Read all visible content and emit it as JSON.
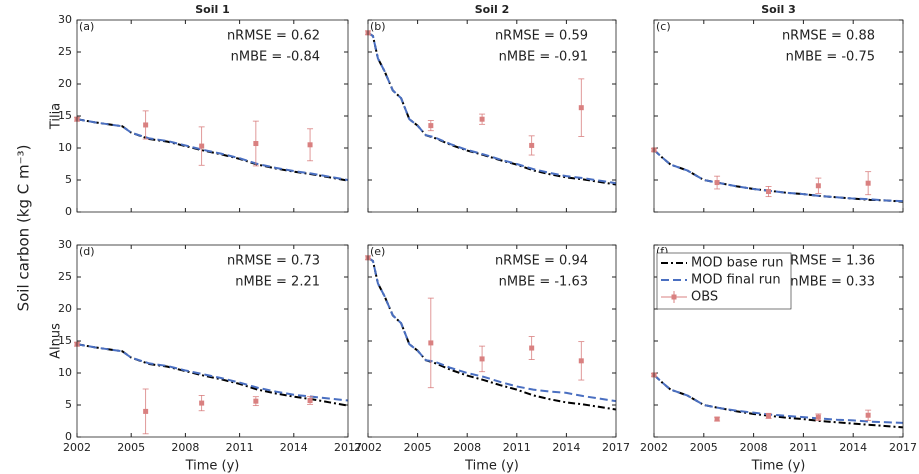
{
  "ylabel": "Soil carbon (kg C m⁻³)",
  "chart_data": [
    {
      "type": "line",
      "panel": "(a)",
      "title": "Soil 1",
      "row_label": "Tilia",
      "annotations": [
        "nRMSE = 0.62",
        "nMBE = -0.84"
      ],
      "xlim": [
        2002,
        2017
      ],
      "ylim": [
        0,
        30
      ],
      "xticks": [
        2002,
        2005,
        2008,
        2011,
        2014,
        2017
      ],
      "yticks": [
        0,
        5,
        10,
        15,
        20,
        25,
        30
      ],
      "show_xtick_labels": false,
      "show_ytick_labels": true,
      "series": [
        {
          "color": "#000000",
          "style": "dashdot",
          "x": [
            2002,
            2003,
            2004,
            2004.5,
            2005,
            2006,
            2007,
            2008,
            2009,
            2010,
            2011,
            2012,
            2013,
            2014,
            2015,
            2016,
            2017
          ],
          "values": [
            14.5,
            14.0,
            13.6,
            13.4,
            12.4,
            11.4,
            11.0,
            10.3,
            9.6,
            9.0,
            8.3,
            7.4,
            6.8,
            6.3,
            5.9,
            5.4,
            4.9
          ]
        },
        {
          "color": "#4a6fc1",
          "style": "dashed",
          "x": [
            2002,
            2003,
            2004,
            2004.5,
            2005,
            2006,
            2007,
            2008,
            2009,
            2010,
            2011,
            2012,
            2013,
            2014,
            2015,
            2016,
            2017
          ],
          "values": [
            14.5,
            14.0,
            13.6,
            13.4,
            12.4,
            11.5,
            11.1,
            10.4,
            9.7,
            9.1,
            8.4,
            7.5,
            6.9,
            6.4,
            6.0,
            5.5,
            5.0
          ]
        },
        {
          "color": "#d98080",
          "style": "markers",
          "x": [
            2002,
            2005.8,
            2008.9,
            2011.9,
            2014.9
          ],
          "values": [
            14.5,
            13.6,
            10.3,
            10.7,
            10.5
          ],
          "errors": [
            0.3,
            2.2,
            3.0,
            3.5,
            2.5
          ]
        }
      ]
    },
    {
      "type": "line",
      "panel": "(b)",
      "title": "Soil 2",
      "annotations": [
        "nRMSE = 0.59",
        "nMBE = -0.91"
      ],
      "xlim": [
        2002,
        2017
      ],
      "ylim": [
        0,
        30
      ],
      "xticks": [
        2002,
        2005,
        2008,
        2011,
        2014,
        2017
      ],
      "yticks": [
        0,
        5,
        10,
        15,
        20,
        25,
        30
      ],
      "show_xtick_labels": false,
      "show_ytick_labels": false,
      "series": [
        {
          "color": "#000000",
          "style": "dashdot",
          "x": [
            2002,
            2002.3,
            2002.6,
            2003,
            2003.5,
            2004,
            2004.5,
            2005,
            2005.5,
            2006,
            2007,
            2008,
            2009,
            2010,
            2011,
            2012,
            2013,
            2014,
            2015,
            2016,
            2017
          ],
          "values": [
            28,
            27.5,
            24,
            22,
            19,
            17.8,
            14.5,
            13.5,
            12,
            11.6,
            10.5,
            9.6,
            8.9,
            8.1,
            7.4,
            6.5,
            5.9,
            5.4,
            5.1,
            4.7,
            4.3
          ]
        },
        {
          "color": "#4a6fc1",
          "style": "dashed",
          "x": [
            2002,
            2002.3,
            2002.6,
            2003,
            2003.5,
            2004,
            2004.5,
            2005,
            2005.5,
            2006,
            2007,
            2008,
            2009,
            2010,
            2011,
            2012,
            2013,
            2014,
            2015,
            2016,
            2017
          ],
          "values": [
            28,
            27.5,
            24,
            22,
            19,
            17.8,
            14.5,
            13.5,
            12,
            11.7,
            10.6,
            9.7,
            9.0,
            8.2,
            7.5,
            6.7,
            6.1,
            5.6,
            5.3,
            4.9,
            4.5
          ]
        },
        {
          "color": "#d98080",
          "style": "markers",
          "x": [
            2002,
            2005.8,
            2008.9,
            2011.9,
            2014.9
          ],
          "values": [
            28,
            13.5,
            14.5,
            10.4,
            16.3
          ],
          "errors": [
            0.3,
            0.8,
            0.8,
            1.5,
            4.5
          ]
        }
      ]
    },
    {
      "type": "line",
      "panel": "(c)",
      "title": "Soil 3",
      "annotations": [
        "nRMSE = 0.88",
        "nMBE = -0.75"
      ],
      "xlim": [
        2002,
        2017
      ],
      "ylim": [
        0,
        30
      ],
      "xticks": [
        2002,
        2005,
        2008,
        2011,
        2014,
        2017
      ],
      "yticks": [
        0,
        5,
        10,
        15,
        20,
        25,
        30
      ],
      "show_xtick_labels": false,
      "show_ytick_labels": false,
      "series": [
        {
          "color": "#000000",
          "style": "dashdot",
          "x": [
            2002,
            2002.5,
            2003,
            2004,
            2005,
            2006,
            2007,
            2008,
            2009,
            2010,
            2011,
            2012,
            2013,
            2014,
            2015,
            2016,
            2017
          ],
          "values": [
            9.7,
            8.5,
            7.4,
            6.5,
            5.0,
            4.5,
            4.0,
            3.6,
            3.3,
            3.0,
            2.8,
            2.5,
            2.3,
            2.1,
            1.9,
            1.8,
            1.6
          ]
        },
        {
          "color": "#4a6fc1",
          "style": "dashed",
          "x": [
            2002,
            2002.5,
            2003,
            2004,
            2005,
            2006,
            2007,
            2008,
            2009,
            2010,
            2011,
            2012,
            2013,
            2014,
            2015,
            2016,
            2017
          ],
          "values": [
            9.7,
            8.5,
            7.4,
            6.5,
            5.0,
            4.5,
            4.0,
            3.6,
            3.3,
            3.0,
            2.8,
            2.5,
            2.3,
            2.1,
            2.0,
            1.8,
            1.7
          ]
        },
        {
          "color": "#d98080",
          "style": "markers",
          "x": [
            2002,
            2005.8,
            2008.9,
            2011.9,
            2014.9
          ],
          "values": [
            9.7,
            4.6,
            3.2,
            4.1,
            4.5
          ],
          "errors": [
            0.2,
            1.0,
            0.8,
            1.2,
            1.8
          ]
        }
      ]
    },
    {
      "type": "line",
      "panel": "(d)",
      "row_label": "Alnus",
      "annotations": [
        "nRMSE = 0.73",
        "nMBE = 2.21"
      ],
      "xlabel": "Time (y)",
      "xlim": [
        2002,
        2017
      ],
      "ylim": [
        0,
        30
      ],
      "xticks": [
        2002,
        2005,
        2008,
        2011,
        2014,
        2017
      ],
      "yticks": [
        0,
        5,
        10,
        15,
        20,
        25,
        30
      ],
      "show_xtick_labels": true,
      "show_ytick_labels": true,
      "series": [
        {
          "color": "#000000",
          "style": "dashdot",
          "x": [
            2002,
            2003,
            2004,
            2004.5,
            2005,
            2006,
            2007,
            2008,
            2009,
            2010,
            2011,
            2012,
            2013,
            2014,
            2015,
            2016,
            2017
          ],
          "values": [
            14.5,
            14.0,
            13.6,
            13.4,
            12.4,
            11.4,
            11.0,
            10.3,
            9.6,
            9.0,
            8.3,
            7.4,
            6.8,
            6.3,
            5.9,
            5.4,
            4.9
          ]
        },
        {
          "color": "#4a6fc1",
          "style": "dashed",
          "x": [
            2002,
            2003,
            2004,
            2004.5,
            2005,
            2006,
            2007,
            2008,
            2009,
            2010,
            2011,
            2012,
            2013,
            2014,
            2015,
            2016,
            2017
          ],
          "values": [
            14.5,
            14.0,
            13.6,
            13.4,
            12.4,
            11.5,
            11.1,
            10.4,
            9.8,
            9.2,
            8.5,
            7.7,
            7.1,
            6.6,
            6.3,
            6.0,
            5.7
          ]
        },
        {
          "color": "#d98080",
          "style": "markers",
          "x": [
            2002,
            2005.8,
            2008.9,
            2011.9,
            2014.9
          ],
          "values": [
            14.5,
            4.0,
            5.3,
            5.6,
            5.7
          ],
          "errors": [
            0.3,
            3.5,
            1.2,
            0.7,
            0.6
          ]
        }
      ]
    },
    {
      "type": "line",
      "panel": "(e)",
      "annotations": [
        "nRMSE = 0.94",
        "nMBE = -1.63"
      ],
      "xlabel": "Time (y)",
      "xlim": [
        2002,
        2017
      ],
      "ylim": [
        0,
        30
      ],
      "xticks": [
        2002,
        2005,
        2008,
        2011,
        2014,
        2017
      ],
      "yticks": [
        0,
        5,
        10,
        15,
        20,
        25,
        30
      ],
      "show_xtick_labels": true,
      "show_ytick_labels": false,
      "series": [
        {
          "color": "#000000",
          "style": "dashdot",
          "x": [
            2002,
            2002.3,
            2002.6,
            2003,
            2003.5,
            2004,
            2004.5,
            2005,
            2005.5,
            2006,
            2007,
            2008,
            2009,
            2010,
            2011,
            2012,
            2013,
            2014,
            2015,
            2016,
            2017
          ],
          "values": [
            28,
            27.5,
            24,
            22,
            19,
            17.8,
            14.5,
            13.5,
            12,
            11.6,
            10.5,
            9.6,
            8.9,
            8.1,
            7.4,
            6.5,
            5.9,
            5.4,
            5.1,
            4.7,
            4.3
          ]
        },
        {
          "color": "#4a6fc1",
          "style": "dashed",
          "x": [
            2002,
            2002.3,
            2002.6,
            2003,
            2003.5,
            2004,
            2004.5,
            2005,
            2005.5,
            2006,
            2007,
            2008,
            2009,
            2010,
            2011,
            2012,
            2013,
            2014,
            2015,
            2016,
            2017
          ],
          "values": [
            28,
            27.5,
            24,
            22,
            19,
            17.8,
            14.5,
            13.5,
            12,
            11.8,
            10.8,
            10.0,
            9.4,
            8.6,
            7.9,
            7.4,
            7.1,
            6.9,
            6.4,
            6.0,
            5.6
          ]
        },
        {
          "color": "#d98080",
          "style": "markers",
          "x": [
            2002,
            2005.8,
            2008.9,
            2011.9,
            2014.9
          ],
          "values": [
            28,
            14.7,
            12.2,
            13.9,
            11.9
          ],
          "errors": [
            0.3,
            7.0,
            2.0,
            1.8,
            3.0
          ]
        }
      ]
    },
    {
      "type": "line",
      "panel": "(f)",
      "annotations": [
        "nRMSE = 1.36",
        "nMBE = 0.33"
      ],
      "xlabel": "Time (y)",
      "legend": "upper left",
      "xlim": [
        2002,
        2017
      ],
      "ylim": [
        0,
        30
      ],
      "xticks": [
        2002,
        2005,
        2008,
        2011,
        2014,
        2017
      ],
      "yticks": [
        0,
        5,
        10,
        15,
        20,
        25,
        30
      ],
      "show_xtick_labels": true,
      "show_ytick_labels": false,
      "series": [
        {
          "name": "MOD base run",
          "color": "#000000",
          "style": "dashdot",
          "x": [
            2002,
            2002.5,
            2003,
            2004,
            2005,
            2006,
            2007,
            2008,
            2009,
            2010,
            2011,
            2012,
            2013,
            2014,
            2015,
            2016,
            2017
          ],
          "values": [
            9.7,
            8.5,
            7.4,
            6.5,
            5.0,
            4.5,
            4.0,
            3.6,
            3.3,
            3.0,
            2.8,
            2.5,
            2.3,
            2.1,
            1.9,
            1.7,
            1.5
          ]
        },
        {
          "name": "MOD final run",
          "color": "#4a6fc1",
          "style": "dashed",
          "x": [
            2002,
            2002.5,
            2003,
            2004,
            2005,
            2006,
            2007,
            2008,
            2009,
            2010,
            2011,
            2012,
            2013,
            2014,
            2015,
            2016,
            2017
          ],
          "values": [
            9.7,
            8.5,
            7.4,
            6.5,
            5.0,
            4.5,
            4.1,
            3.8,
            3.5,
            3.3,
            3.1,
            2.9,
            2.7,
            2.6,
            2.4,
            2.3,
            2.2
          ]
        },
        {
          "name": "OBS",
          "color": "#d98080",
          "style": "markers",
          "x": [
            2002,
            2005.8,
            2008.9,
            2011.9,
            2014.9
          ],
          "values": [
            9.7,
            2.8,
            3.3,
            3.1,
            3.4
          ],
          "errors": [
            0.2,
            0.3,
            0.4,
            0.5,
            0.8
          ]
        }
      ]
    }
  ]
}
